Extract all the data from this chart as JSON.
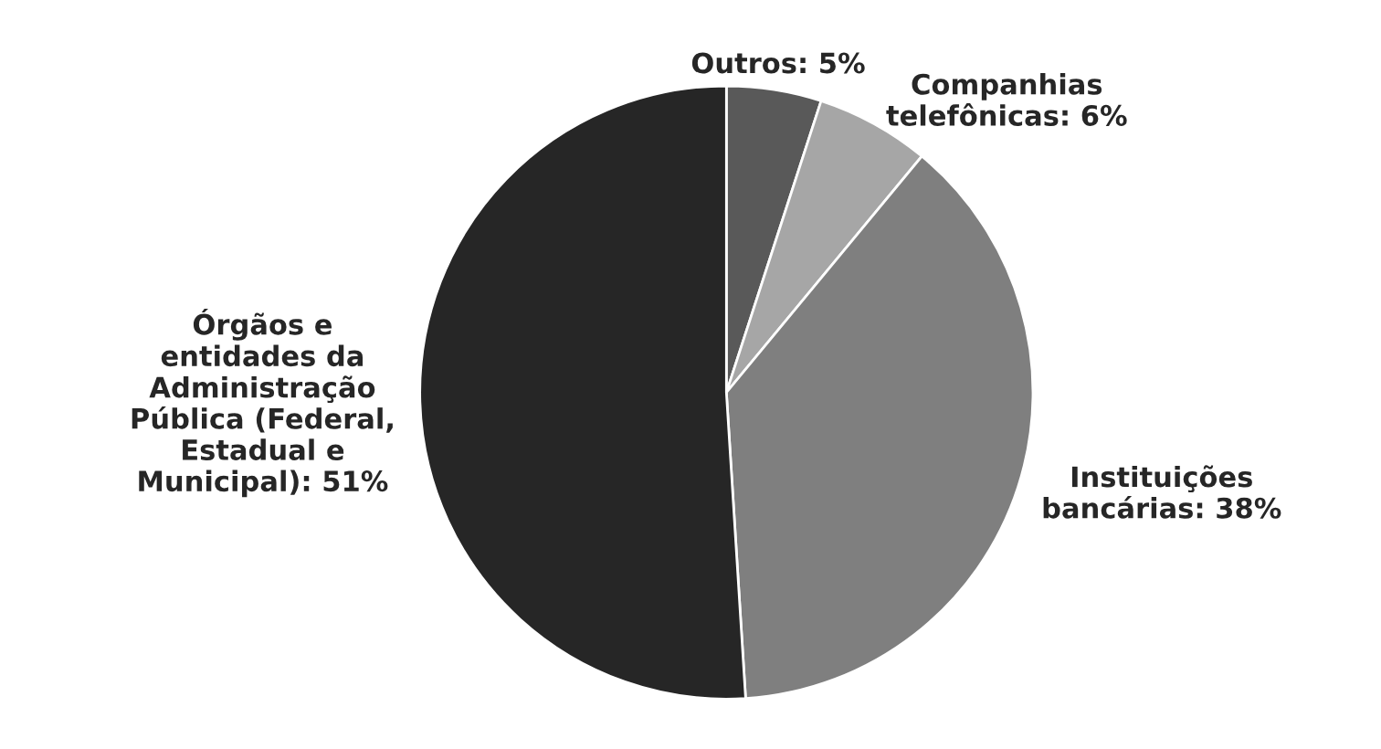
{
  "chart_data": {
    "type": "pie",
    "categories": [
      "Outros: 5%",
      "Companhias\ntelefônicas: 6%",
      "Instituições\nbancárias: 38%",
      "Órgãos e\nentidades da\nAdministração\nPública (Federal,\nEstadual e\nMunicipal): 51%"
    ],
    "values": [
      5,
      6,
      38,
      51
    ],
    "colors": [
      "#595959",
      "#a6a6a6",
      "#7f7f7f",
      "#262626"
    ],
    "legend": false
  }
}
